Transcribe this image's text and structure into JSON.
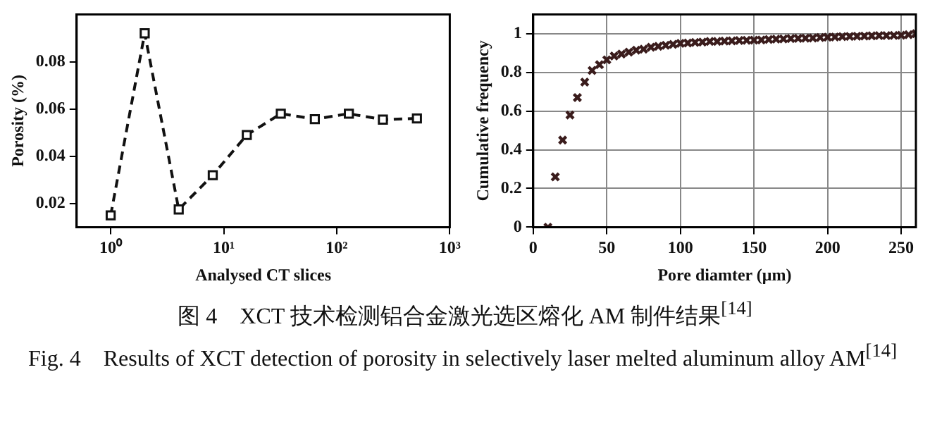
{
  "chart_data": [
    {
      "type": "line",
      "xlabel": "Analysed CT slices",
      "ylabel": "Porosity (%)",
      "log": "x",
      "marker": "square",
      "line_style": "dashed",
      "grid": false,
      "legend": false,
      "x": [
        1,
        2,
        4,
        8,
        16,
        32,
        64,
        128,
        256,
        512
      ],
      "series": [
        {
          "color": "#111111",
          "values": [
            0.015,
            0.092,
            0.0175,
            0.032,
            0.049,
            0.058,
            0.0557,
            0.058,
            0.0555,
            0.056
          ]
        }
      ],
      "xlim": [
        0.5,
        1000
      ],
      "xticks": [
        {
          "value": 1,
          "label": "10⁰"
        },
        {
          "value": 10,
          "label": "10¹"
        },
        {
          "value": 100,
          "label": "10²"
        },
        {
          "value": 1000,
          "label": "10³"
        }
      ],
      "ylim": [
        0.01,
        0.1
      ],
      "yticks": [
        0.02,
        0.04,
        0.06,
        0.08
      ],
      "annotations": [
        "图 4　XCT 技术检测铝合金激光选区熔化 AM 制件结果$^{[14]}$",
        "Fig. 4　Results of XCT detection of porosity in selectively laser melted aluminum alloy AM$^{[14]}$"
      ]
    },
    {
      "type": "scatter",
      "xlabel": "Pore diamter (μm)",
      "ylabel": "Cumulative frequency",
      "marker": "cross",
      "grid": true,
      "legend": false,
      "x": [
        10,
        15,
        20,
        25,
        30,
        35,
        40,
        45,
        50,
        55,
        60,
        65,
        70,
        75,
        80,
        85,
        90,
        95,
        100,
        105,
        110,
        115,
        120,
        125,
        130,
        135,
        140,
        145,
        150,
        155,
        160,
        165,
        170,
        175,
        180,
        185,
        190,
        195,
        200,
        205,
        210,
        215,
        220,
        225,
        230,
        235,
        240,
        245,
        250,
        255,
        260
      ],
      "series": [
        {
          "color": "#3a1c1c",
          "values": [
            0,
            0.26,
            0.45,
            0.58,
            0.67,
            0.75,
            0.81,
            0.84,
            0.865,
            0.885,
            0.895,
            0.905,
            0.915,
            0.92,
            0.93,
            0.935,
            0.94,
            0.945,
            0.95,
            0.952,
            0.955,
            0.957,
            0.96,
            0.96,
            0.962,
            0.963,
            0.965,
            0.966,
            0.967,
            0.968,
            0.97,
            0.972,
            0.973,
            0.975,
            0.976,
            0.977,
            0.978,
            0.98,
            0.982,
            0.983,
            0.985,
            0.986,
            0.987,
            0.988,
            0.989,
            0.99,
            0.99,
            0.991,
            0.992,
            0.995,
            1.0
          ]
        }
      ],
      "xlim": [
        0,
        260
      ],
      "xticks": [
        0,
        50,
        100,
        150,
        200,
        250
      ],
      "ylim": [
        0,
        1.1
      ],
      "yticks": [
        0,
        0.2,
        0.4,
        0.6,
        0.8,
        1
      ]
    }
  ]
}
